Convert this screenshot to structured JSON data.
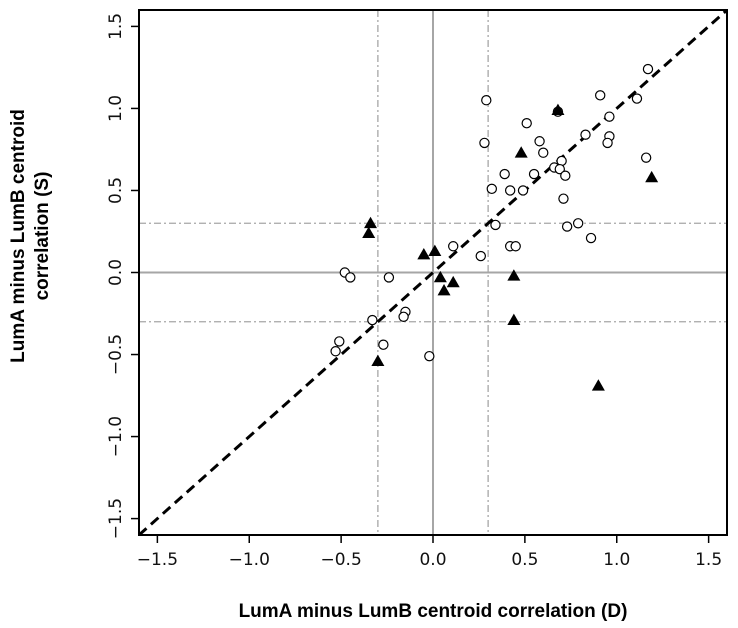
{
  "chart_data": {
    "type": "scatter",
    "xlabel": "LumA minus LumB centroid correlation (D)",
    "ylabel_lines": [
      "LumA minus LumB centroid",
      "correlation (S)"
    ],
    "xlim": [
      -1.6,
      1.6
    ],
    "ylim": [
      -1.6,
      1.6
    ],
    "x_ticks": [
      -1.5,
      -1.0,
      -0.5,
      0.0,
      0.5,
      1.0,
      1.5
    ],
    "x_tick_labels": [
      "−1.5",
      "−1.0",
      "−0.5",
      "0.0",
      "0.5",
      "1.0",
      "1.5"
    ],
    "y_ticks": [
      -1.5,
      -1.0,
      -0.5,
      0.0,
      0.5,
      1.0,
      1.5
    ],
    "y_tick_labels": [
      "−1.5",
      "−1.0",
      "−0.5",
      "0.0",
      "0.5",
      "1.0",
      "1.5"
    ],
    "grid": false,
    "reference_lines": {
      "zero_lines": [
        0.0
      ],
      "threshold_lines": [
        -0.3,
        0.3
      ],
      "diagonal": {
        "slope": 1,
        "intercept": 0
      }
    },
    "series": [
      {
        "marker": "open-circle",
        "points": [
          [
            1.17,
            1.24
          ],
          [
            0.29,
            1.05
          ],
          [
            0.91,
            1.08
          ],
          [
            1.11,
            1.06
          ],
          [
            0.51,
            0.91
          ],
          [
            0.68,
            0.98
          ],
          [
            0.96,
            0.95
          ],
          [
            0.28,
            0.79
          ],
          [
            0.83,
            0.84
          ],
          [
            0.96,
            0.83
          ],
          [
            0.58,
            0.8
          ],
          [
            0.95,
            0.79
          ],
          [
            0.6,
            0.73
          ],
          [
            1.16,
            0.7
          ],
          [
            0.7,
            0.68
          ],
          [
            0.66,
            0.64
          ],
          [
            0.69,
            0.63
          ],
          [
            0.39,
            0.6
          ],
          [
            0.55,
            0.6
          ],
          [
            0.72,
            0.59
          ],
          [
            0.32,
            0.51
          ],
          [
            0.42,
            0.5
          ],
          [
            0.49,
            0.5
          ],
          [
            0.71,
            0.45
          ],
          [
            0.34,
            0.29
          ],
          [
            0.79,
            0.3
          ],
          [
            0.73,
            0.28
          ],
          [
            0.86,
            0.21
          ],
          [
            0.11,
            0.16
          ],
          [
            0.42,
            0.16
          ],
          [
            0.45,
            0.16
          ],
          [
            0.26,
            0.1
          ],
          [
            -0.48,
            0.0
          ],
          [
            -0.45,
            -0.03
          ],
          [
            -0.24,
            -0.03
          ],
          [
            -0.15,
            -0.24
          ],
          [
            -0.16,
            -0.27
          ],
          [
            -0.33,
            -0.29
          ],
          [
            -0.51,
            -0.42
          ],
          [
            -0.27,
            -0.44
          ],
          [
            -0.53,
            -0.48
          ],
          [
            -0.02,
            -0.51
          ]
        ]
      },
      {
        "marker": "filled-triangle",
        "points": [
          [
            0.68,
            0.99
          ],
          [
            0.48,
            0.73
          ],
          [
            1.19,
            0.58
          ],
          [
            -0.34,
            0.3
          ],
          [
            -0.35,
            0.24
          ],
          [
            -0.05,
            0.11
          ],
          [
            0.01,
            0.13
          ],
          [
            0.04,
            -0.03
          ],
          [
            0.11,
            -0.06
          ],
          [
            0.06,
            -0.11
          ],
          [
            0.44,
            -0.02
          ],
          [
            0.44,
            -0.29
          ],
          [
            -0.3,
            -0.54
          ],
          [
            0.9,
            -0.69
          ]
        ]
      }
    ]
  }
}
